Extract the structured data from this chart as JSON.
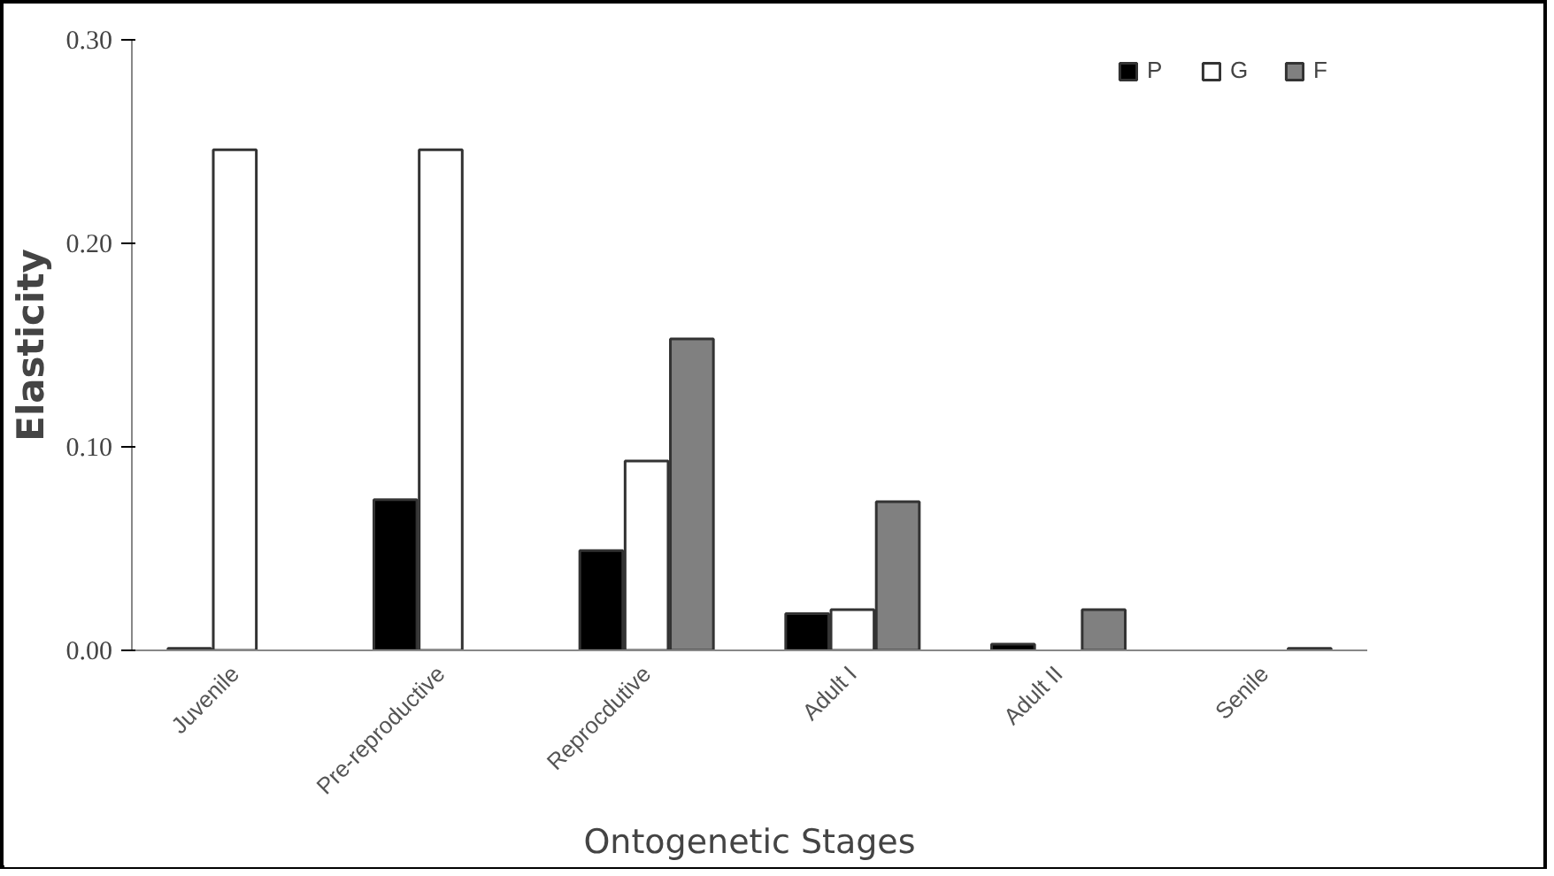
{
  "chart_data": {
    "type": "bar",
    "xlabel": "Ontogenetic Stages",
    "ylabel": "Elasticity",
    "categories": [
      "Juvenile",
      "Pre-reproductive",
      "Reprocdutive",
      "Adult I",
      "Adult II",
      "Senile"
    ],
    "series": [
      {
        "name": "P",
        "color": "#000000",
        "values": [
          0.001,
          0.074,
          0.049,
          0.018,
          0.003,
          null
        ]
      },
      {
        "name": "G",
        "color": "#ffffff",
        "values": [
          0.246,
          0.246,
          0.093,
          0.02,
          null,
          null
        ]
      },
      {
        "name": "F",
        "color": "#808080",
        "values": [
          null,
          null,
          0.153,
          0.073,
          0.02,
          0.001
        ]
      }
    ],
    "ylim": [
      0,
      0.3
    ],
    "yticks": [
      {
        "value": 0,
        "label": "0.00"
      },
      {
        "value": 0.1,
        "label": "0.10"
      },
      {
        "value": 0.2,
        "label": "0.20"
      },
      {
        "value": 0.3,
        "label": "0.30"
      }
    ],
    "grid": false,
    "legend": "top right"
  }
}
